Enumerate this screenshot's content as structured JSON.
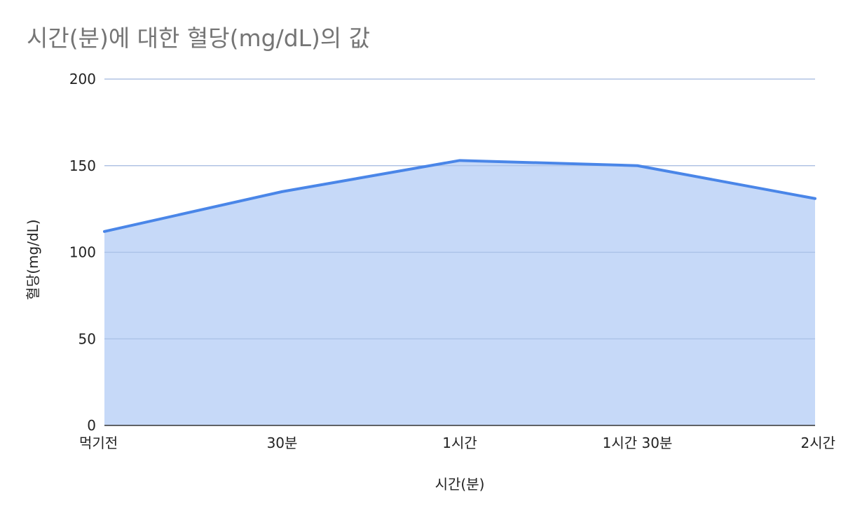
{
  "chart_data": {
    "type": "area",
    "title": "시간(분)에 대한 혈당(mg/dL)의 값",
    "xlabel": "시간(분)",
    "ylabel": "혈당(mg/dL)",
    "categories": [
      "먹기전",
      "30분",
      "1시간",
      "1시간 30분",
      "2시간"
    ],
    "series": [
      {
        "name": "",
        "values": [
          112,
          135,
          153,
          150,
          131
        ]
      }
    ],
    "ylim": [
      0,
      200
    ],
    "yticks": [
      0,
      50,
      100,
      150,
      200
    ],
    "grid": true,
    "legend": "none"
  },
  "colors": {
    "line": "#4a86e8",
    "fill": "#c6d9f8",
    "grid": "#cccccc",
    "axis": "#333333",
    "title": "#757575",
    "text": "#222222"
  }
}
